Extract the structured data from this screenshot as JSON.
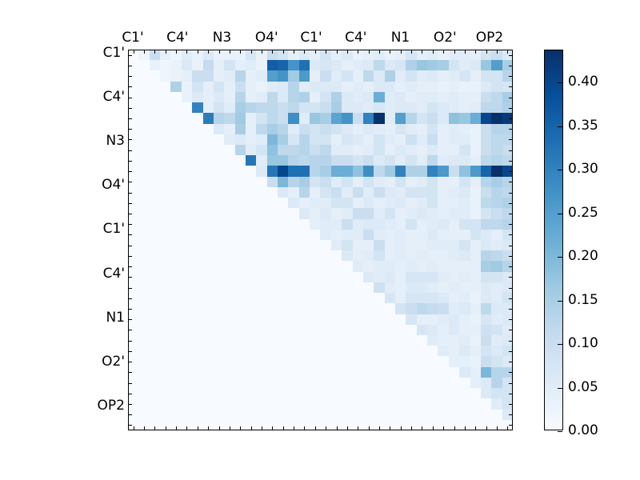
{
  "chart_data": {
    "type": "heatmap",
    "title": "",
    "description": "Upper-triangular pairwise matrix, Blues colormap",
    "n_cells": 36,
    "x_axis_labels": [
      "C1'",
      "C4'",
      "N3",
      "O4'",
      "C1'",
      "C4'",
      "N1",
      "O2'",
      "OP2"
    ],
    "y_axis_labels": [
      "C1'",
      "C4'",
      "N3",
      "O4'",
      "C1'",
      "C4'",
      "N1",
      "O2'",
      "OP2"
    ],
    "vmin": 0.0,
    "vmax": 0.437,
    "colormap": "Blues",
    "colormap_stops": [
      "#f7fbff",
      "#deebf7",
      "#c6dbef",
      "#9ecae1",
      "#6baed6",
      "#4292c6",
      "#2171b5",
      "#08519c",
      "#08306b"
    ],
    "colorbar_ticks": [
      {
        "label": "0.00",
        "value": 0.0
      },
      {
        "label": "0.05",
        "value": 0.05
      },
      {
        "label": "0.10",
        "value": 0.1
      },
      {
        "label": "0.15",
        "value": 0.15
      },
      {
        "label": "0.20",
        "value": 0.2
      },
      {
        "label": "0.25",
        "value": 0.25
      },
      {
        "label": "0.30",
        "value": 0.3
      },
      {
        "label": "0.35",
        "value": 0.35
      },
      {
        "label": "0.40",
        "value": 0.4
      }
    ],
    "colors": {
      "background": "#ffffff",
      "spine": "#000000",
      "text": "#000000"
    },
    "matrix": [
      [
        0,
        0.02,
        0.1,
        0.04,
        0.02,
        0.05,
        0.03,
        0.06,
        0.03,
        0.03,
        0.03,
        0.07,
        0.03,
        0.1,
        0.08,
        0.04,
        0.06,
        0.04,
        0.08,
        0.04,
        0.06,
        0.03,
        0.04,
        0.05,
        0.03,
        0.04,
        0.07,
        0.04,
        0.05,
        0.03,
        0.05,
        0.05,
        0.04,
        0.08,
        0.1,
        0.06
      ],
      [
        0,
        0,
        0.03,
        0.02,
        0.03,
        0.06,
        0.03,
        0.11,
        0.04,
        0.08,
        0.04,
        0.05,
        0.03,
        0.36,
        0.35,
        0.27,
        0.33,
        0.06,
        0.07,
        0.06,
        0.04,
        0.05,
        0.06,
        0.12,
        0.06,
        0.07,
        0.14,
        0.17,
        0.16,
        0.15,
        0.08,
        0.05,
        0.06,
        0.17,
        0.25,
        0.15
      ],
      [
        0,
        0,
        0,
        0.02,
        0.03,
        0.04,
        0.1,
        0.1,
        0.04,
        0.05,
        0.13,
        0.04,
        0.05,
        0.25,
        0.27,
        0.16,
        0.26,
        0.04,
        0.1,
        0.05,
        0.08,
        0.04,
        0.12,
        0.06,
        0.14,
        0.05,
        0.08,
        0.05,
        0.06,
        0.04,
        0.05,
        0.07,
        0.04,
        0.08,
        0.08,
        0.13
      ],
      [
        0,
        0,
        0,
        0,
        0.14,
        0.03,
        0.08,
        0.04,
        0.08,
        0.04,
        0.1,
        0.04,
        0.03,
        0.05,
        0.06,
        0.13,
        0.05,
        0.06,
        0.06,
        0.06,
        0.04,
        0.05,
        0.04,
        0.06,
        0.06,
        0.04,
        0.05,
        0.04,
        0.04,
        0.03,
        0.04,
        0.03,
        0.03,
        0.06,
        0.08,
        0.07
      ],
      [
        0,
        0,
        0,
        0,
        0,
        0.03,
        0.06,
        0.04,
        0.06,
        0.04,
        0.13,
        0.04,
        0.05,
        0.12,
        0.06,
        0.13,
        0.14,
        0.04,
        0.08,
        0.14,
        0.06,
        0.05,
        0.06,
        0.22,
        0.05,
        0.06,
        0.04,
        0.05,
        0.05,
        0.04,
        0.05,
        0.04,
        0.04,
        0.1,
        0.12,
        0.15
      ],
      [
        0,
        0,
        0,
        0,
        0,
        0,
        0.3,
        0.04,
        0.08,
        0.05,
        0.15,
        0.13,
        0.12,
        0.12,
        0.1,
        0.12,
        0.08,
        0.08,
        0.1,
        0.15,
        0.06,
        0.06,
        0.05,
        0.07,
        0.05,
        0.06,
        0.06,
        0.05,
        0.08,
        0.06,
        0.05,
        0.04,
        0.05,
        0.12,
        0.12,
        0.14
      ],
      [
        0,
        0,
        0,
        0,
        0,
        0,
        0,
        0.31,
        0.13,
        0.12,
        0.16,
        0.04,
        0.08,
        0.12,
        0.1,
        0.28,
        0.05,
        0.17,
        0.15,
        0.24,
        0.27,
        0.1,
        0.3,
        0.44,
        0.05,
        0.25,
        0.13,
        0.08,
        0.1,
        0.06,
        0.18,
        0.17,
        0.22,
        0.4,
        0.44,
        0.42
      ],
      [
        0,
        0,
        0,
        0,
        0,
        0,
        0,
        0,
        0.06,
        0.04,
        0.15,
        0.04,
        0.12,
        0.15,
        0.13,
        0.05,
        0.1,
        0.08,
        0.1,
        0.08,
        0.06,
        0.04,
        0.06,
        0.05,
        0.04,
        0.07,
        0.05,
        0.04,
        0.08,
        0.04,
        0.05,
        0.04,
        0.03,
        0.1,
        0.13,
        0.13
      ],
      [
        0,
        0,
        0,
        0,
        0,
        0,
        0,
        0,
        0,
        0.05,
        0.06,
        0.04,
        0.05,
        0.2,
        0.15,
        0.07,
        0.13,
        0.08,
        0.08,
        0.04,
        0.07,
        0.06,
        0.04,
        0.08,
        0.05,
        0.04,
        0.09,
        0.05,
        0.1,
        0.04,
        0.05,
        0.05,
        0.03,
        0.1,
        0.12,
        0.12
      ],
      [
        0,
        0,
        0,
        0,
        0,
        0,
        0,
        0,
        0,
        0,
        0.13,
        0.05,
        0.08,
        0.18,
        0.12,
        0.12,
        0.13,
        0.1,
        0.12,
        0.05,
        0.05,
        0.04,
        0.05,
        0.08,
        0.04,
        0.06,
        0.05,
        0.04,
        0.06,
        0.04,
        0.04,
        0.08,
        0.03,
        0.1,
        0.12,
        0.1
      ],
      [
        0,
        0,
        0,
        0,
        0,
        0,
        0,
        0,
        0,
        0,
        0,
        0.32,
        0.05,
        0.17,
        0.17,
        0.13,
        0.12,
        0.13,
        0.13,
        0.1,
        0.1,
        0.08,
        0.1,
        0.06,
        0.08,
        0.05,
        0.08,
        0.05,
        0.12,
        0.05,
        0.06,
        0.06,
        0.04,
        0.12,
        0.13,
        0.12
      ],
      [
        0,
        0,
        0,
        0,
        0,
        0,
        0,
        0,
        0,
        0,
        0,
        0,
        0.06,
        0.32,
        0.4,
        0.33,
        0.33,
        0.13,
        0.15,
        0.22,
        0.22,
        0.18,
        0.28,
        0.12,
        0.16,
        0.3,
        0.14,
        0.14,
        0.3,
        0.26,
        0.1,
        0.18,
        0.26,
        0.35,
        0.44,
        0.4
      ],
      [
        0,
        0,
        0,
        0,
        0,
        0,
        0,
        0,
        0,
        0,
        0,
        0,
        0,
        0.1,
        0.2,
        0.13,
        0.15,
        0.08,
        0.1,
        0.05,
        0.08,
        0.04,
        0.08,
        0.05,
        0.04,
        0.08,
        0.04,
        0.05,
        0.08,
        0.04,
        0.04,
        0.08,
        0.04,
        0.13,
        0.15,
        0.13
      ],
      [
        0,
        0,
        0,
        0,
        0,
        0,
        0,
        0,
        0,
        0,
        0,
        0,
        0,
        0,
        0.06,
        0.04,
        0.13,
        0.04,
        0.08,
        0.1,
        0.05,
        0.1,
        0.05,
        0.1,
        0.06,
        0.05,
        0.08,
        0.08,
        0.08,
        0.04,
        0.05,
        0.06,
        0.03,
        0.1,
        0.13,
        0.12
      ],
      [
        0,
        0,
        0,
        0,
        0,
        0,
        0,
        0,
        0,
        0,
        0,
        0,
        0,
        0,
        0,
        0.06,
        0.04,
        0.05,
        0.05,
        0.08,
        0.08,
        0.04,
        0.06,
        0.04,
        0.05,
        0.06,
        0.04,
        0.05,
        0.08,
        0.04,
        0.04,
        0.05,
        0.03,
        0.12,
        0.13,
        0.14
      ],
      [
        0,
        0,
        0,
        0,
        0,
        0,
        0,
        0,
        0,
        0,
        0,
        0,
        0,
        0,
        0,
        0,
        0.06,
        0.04,
        0.06,
        0.04,
        0.05,
        0.1,
        0.1,
        0.05,
        0.08,
        0.04,
        0.05,
        0.06,
        0.05,
        0.04,
        0.05,
        0.05,
        0.03,
        0.08,
        0.1,
        0.12
      ],
      [
        0,
        0,
        0,
        0,
        0,
        0,
        0,
        0,
        0,
        0,
        0,
        0,
        0,
        0,
        0,
        0,
        0,
        0.04,
        0.05,
        0.05,
        0.1,
        0.05,
        0.06,
        0.06,
        0.05,
        0.04,
        0.08,
        0.04,
        0.05,
        0.06,
        0.04,
        0.08,
        0.08,
        0.12,
        0.12,
        0.13
      ],
      [
        0,
        0,
        0,
        0,
        0,
        0,
        0,
        0,
        0,
        0,
        0,
        0,
        0,
        0,
        0,
        0,
        0,
        0,
        0.05,
        0.04,
        0.05,
        0.05,
        0.1,
        0.05,
        0.04,
        0.05,
        0.04,
        0.04,
        0.06,
        0.04,
        0.04,
        0.04,
        0.08,
        0.06,
        0.04,
        0.08
      ],
      [
        0,
        0,
        0,
        0,
        0,
        0,
        0,
        0,
        0,
        0,
        0,
        0,
        0,
        0,
        0,
        0,
        0,
        0,
        0,
        0.05,
        0.08,
        0.04,
        0.04,
        0.1,
        0.04,
        0.05,
        0.04,
        0.04,
        0.05,
        0.05,
        0.05,
        0.08,
        0.04,
        0.06,
        0.05,
        0.06
      ],
      [
        0,
        0,
        0,
        0,
        0,
        0,
        0,
        0,
        0,
        0,
        0,
        0,
        0,
        0,
        0,
        0,
        0,
        0,
        0,
        0,
        0.06,
        0.04,
        0.05,
        0.08,
        0.04,
        0.05,
        0.04,
        0.05,
        0.04,
        0.04,
        0.05,
        0.06,
        0.04,
        0.13,
        0.12,
        0.1
      ],
      [
        0,
        0,
        0,
        0,
        0,
        0,
        0,
        0,
        0,
        0,
        0,
        0,
        0,
        0,
        0,
        0,
        0,
        0,
        0,
        0,
        0,
        0.05,
        0.04,
        0.05,
        0.05,
        0.04,
        0.05,
        0.04,
        0.05,
        0.04,
        0.04,
        0.04,
        0.04,
        0.15,
        0.16,
        0.13
      ],
      [
        0,
        0,
        0,
        0,
        0,
        0,
        0,
        0,
        0,
        0,
        0,
        0,
        0,
        0,
        0,
        0,
        0,
        0,
        0,
        0,
        0,
        0,
        0.06,
        0.05,
        0.06,
        0.04,
        0.07,
        0.07,
        0.07,
        0.05,
        0.04,
        0.05,
        0.04,
        0.08,
        0.08,
        0.06
      ],
      [
        0,
        0,
        0,
        0,
        0,
        0,
        0,
        0,
        0,
        0,
        0,
        0,
        0,
        0,
        0,
        0,
        0,
        0,
        0,
        0,
        0,
        0,
        0,
        0.09,
        0.05,
        0.04,
        0.06,
        0.06,
        0.05,
        0.04,
        0.05,
        0.04,
        0.04,
        0.06,
        0.05,
        0.06
      ],
      [
        0,
        0,
        0,
        0,
        0,
        0,
        0,
        0,
        0,
        0,
        0,
        0,
        0,
        0,
        0,
        0,
        0,
        0,
        0,
        0,
        0,
        0,
        0,
        0,
        0.07,
        0.04,
        0.07,
        0.07,
        0.07,
        0.06,
        0.04,
        0.05,
        0.03,
        0.06,
        0.05,
        0.08
      ],
      [
        0,
        0,
        0,
        0,
        0,
        0,
        0,
        0,
        0,
        0,
        0,
        0,
        0,
        0,
        0,
        0,
        0,
        0,
        0,
        0,
        0,
        0,
        0,
        0,
        0,
        0.08,
        0.1,
        0.12,
        0.11,
        0.1,
        0.05,
        0.06,
        0.04,
        0.12,
        0.06,
        0.06
      ],
      [
        0,
        0,
        0,
        0,
        0,
        0,
        0,
        0,
        0,
        0,
        0,
        0,
        0,
        0,
        0,
        0,
        0,
        0,
        0,
        0,
        0,
        0,
        0,
        0,
        0,
        0,
        0.07,
        0.04,
        0.04,
        0.05,
        0.06,
        0.04,
        0.03,
        0.07,
        0.05,
        0.06
      ],
      [
        0,
        0,
        0,
        0,
        0,
        0,
        0,
        0,
        0,
        0,
        0,
        0,
        0,
        0,
        0,
        0,
        0,
        0,
        0,
        0,
        0,
        0,
        0,
        0,
        0,
        0,
        0,
        0.07,
        0.06,
        0.04,
        0.06,
        0.04,
        0.04,
        0.09,
        0.08,
        0.05
      ],
      [
        0,
        0,
        0,
        0,
        0,
        0,
        0,
        0,
        0,
        0,
        0,
        0,
        0,
        0,
        0,
        0,
        0,
        0,
        0,
        0,
        0,
        0,
        0,
        0,
        0,
        0,
        0,
        0,
        0.05,
        0.04,
        0.04,
        0.05,
        0.03,
        0.1,
        0.05,
        0.06
      ],
      [
        0,
        0,
        0,
        0,
        0,
        0,
        0,
        0,
        0,
        0,
        0,
        0,
        0,
        0,
        0,
        0,
        0,
        0,
        0,
        0,
        0,
        0,
        0,
        0,
        0,
        0,
        0,
        0,
        0,
        0.05,
        0.04,
        0.06,
        0.04,
        0.08,
        0.06,
        0.08
      ],
      [
        0,
        0,
        0,
        0,
        0,
        0,
        0,
        0,
        0,
        0,
        0,
        0,
        0,
        0,
        0,
        0,
        0,
        0,
        0,
        0,
        0,
        0,
        0,
        0,
        0,
        0,
        0,
        0,
        0,
        0,
        0.04,
        0.04,
        0.03,
        0.1,
        0.08,
        0.06
      ],
      [
        0,
        0,
        0,
        0,
        0,
        0,
        0,
        0,
        0,
        0,
        0,
        0,
        0,
        0,
        0,
        0,
        0,
        0,
        0,
        0,
        0,
        0,
        0,
        0,
        0,
        0,
        0,
        0,
        0,
        0,
        0,
        0.06,
        0.04,
        0.2,
        0.13,
        0.13
      ],
      [
        0,
        0,
        0,
        0,
        0,
        0,
        0,
        0,
        0,
        0,
        0,
        0,
        0,
        0,
        0,
        0,
        0,
        0,
        0,
        0,
        0,
        0,
        0,
        0,
        0,
        0,
        0,
        0,
        0,
        0,
        0,
        0,
        0.04,
        0.06,
        0.13,
        0.08
      ],
      [
        0,
        0,
        0,
        0,
        0,
        0,
        0,
        0,
        0,
        0,
        0,
        0,
        0,
        0,
        0,
        0,
        0,
        0,
        0,
        0,
        0,
        0,
        0,
        0,
        0,
        0,
        0,
        0,
        0,
        0,
        0,
        0,
        0,
        0.06,
        0.08,
        0.08
      ],
      [
        0,
        0,
        0,
        0,
        0,
        0,
        0,
        0,
        0,
        0,
        0,
        0,
        0,
        0,
        0,
        0,
        0,
        0,
        0,
        0,
        0,
        0,
        0,
        0,
        0,
        0,
        0,
        0,
        0,
        0,
        0,
        0,
        0,
        0,
        0.05,
        0.08
      ],
      [
        0,
        0,
        0,
        0,
        0,
        0,
        0,
        0,
        0,
        0,
        0,
        0,
        0,
        0,
        0,
        0,
        0,
        0,
        0,
        0,
        0,
        0,
        0,
        0,
        0,
        0,
        0,
        0,
        0,
        0,
        0,
        0,
        0,
        0,
        0,
        0.06
      ],
      [
        0,
        0,
        0,
        0,
        0,
        0,
        0,
        0,
        0,
        0,
        0,
        0,
        0,
        0,
        0,
        0,
        0,
        0,
        0,
        0,
        0,
        0,
        0,
        0,
        0,
        0,
        0,
        0,
        0,
        0,
        0,
        0,
        0,
        0,
        0,
        0
      ]
    ]
  }
}
